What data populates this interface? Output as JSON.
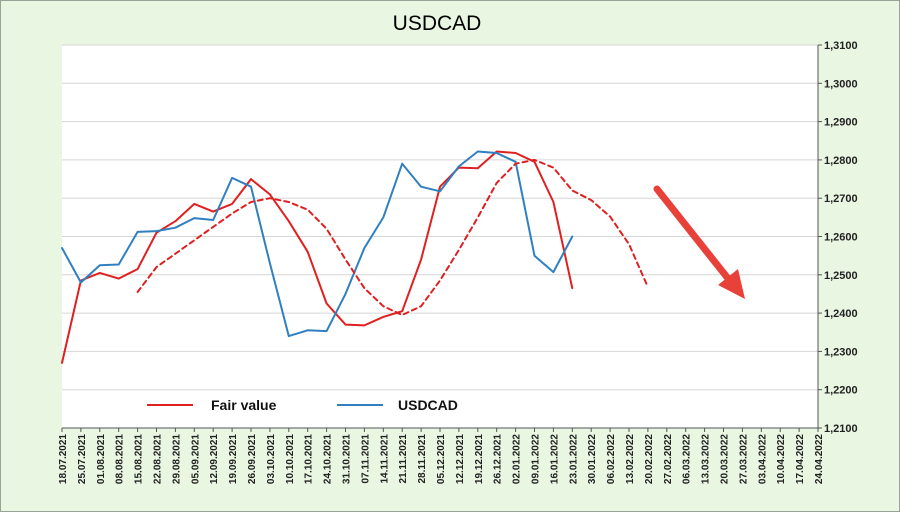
{
  "chart_data": {
    "type": "line",
    "title": "USDCAD",
    "x": [
      "18.07.2021",
      "25.07.2021",
      "01.08.2021",
      "08.08.2021",
      "15.08.2021",
      "22.08.2021",
      "29.08.2021",
      "05.09.2021",
      "12.09.2021",
      "19.09.2021",
      "26.09.2021",
      "03.10.2021",
      "10.10.2021",
      "17.10.2021",
      "24.10.2021",
      "31.10.2021",
      "07.11.2021",
      "14.11.2021",
      "21.11.2021",
      "28.11.2021",
      "05.12.2021",
      "12.12.2021",
      "19.12.2021",
      "26.12.2021",
      "02.01.2022",
      "09.01.2022",
      "16.01.2022",
      "23.01.2022",
      "30.01.2022",
      "06.02.2022",
      "13.02.2022",
      "20.02.2022",
      "27.02.2022",
      "06.03.2022",
      "13.03.2022",
      "20.03.2022",
      "27.03.2022",
      "03.04.2022",
      "10.04.2022",
      "17.04.2022",
      "24.04.2022"
    ],
    "y_tick_labels": [
      "1,2100",
      "1,2200",
      "1,2300",
      "1,2400",
      "1,2500",
      "1,2600",
      "1,2700",
      "1,2800",
      "1,2900",
      "1,3000",
      "1,3100"
    ],
    "ylim": [
      1.21,
      1.31
    ],
    "y_axis_position": "right",
    "grid": "horizontal",
    "legend_position": "bottom-left",
    "series": [
      {
        "name": "Fair value",
        "color": "#e02020",
        "style": "solid",
        "values": [
          1.227,
          1.2485,
          1.2505,
          1.249,
          1.2515,
          1.261,
          1.264,
          1.2685,
          1.2665,
          1.2685,
          1.275,
          1.271,
          1.264,
          1.256,
          1.2425,
          1.237,
          1.2368,
          1.239,
          1.2405,
          1.254,
          1.273,
          1.278,
          1.2778,
          1.2822,
          1.2818,
          1.2795,
          1.269,
          1.2465,
          null,
          null,
          null,
          null,
          null,
          null,
          null,
          null,
          null,
          null,
          null,
          null,
          null
        ]
      },
      {
        "name": "USDCAD",
        "color": "#2f7fc1",
        "style": "solid",
        "values": [
          1.257,
          1.248,
          1.2525,
          1.2527,
          1.2612,
          1.2614,
          1.2623,
          1.2648,
          1.2643,
          1.2753,
          1.273,
          1.253,
          1.234,
          1.2355,
          1.2353,
          1.245,
          1.257,
          1.265,
          1.279,
          1.273,
          1.2718,
          1.2783,
          1.2822,
          1.2818,
          1.2795,
          1.255,
          1.2507,
          1.26,
          null,
          null,
          null,
          null,
          null,
          null,
          null,
          null,
          null,
          null,
          null,
          null,
          null
        ]
      },
      {
        "name": "",
        "color": "#e02020",
        "style": "dashed",
        "values": [
          null,
          null,
          null,
          null,
          1.2455,
          1.252,
          1.2555,
          1.259,
          1.2625,
          1.266,
          1.269,
          1.27,
          1.269,
          1.267,
          1.262,
          1.254,
          1.2465,
          1.2418,
          1.2395,
          1.2418,
          1.2485,
          1.2565,
          1.265,
          1.274,
          1.279,
          1.28,
          1.278,
          1.272,
          1.2695,
          1.2652,
          1.258,
          1.2468,
          null,
          null,
          null,
          null,
          null,
          null,
          null,
          null,
          null
        ]
      }
    ],
    "annotation": {
      "type": "arrow",
      "direction": "down-right",
      "color": "#e8413a"
    }
  },
  "legend": [
    {
      "label": "Fair value",
      "color": "#e02020"
    },
    {
      "label": "USDCAD",
      "color": "#2f7fc1"
    }
  ]
}
